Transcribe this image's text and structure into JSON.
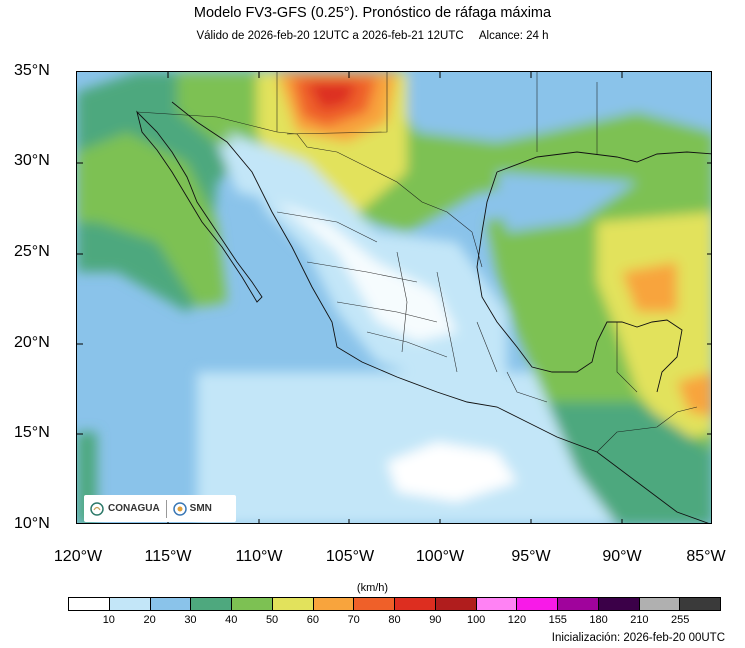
{
  "header": {
    "title": "Modelo FV3-GFS (0.25°). Pronóstico de ráfaga máxima",
    "valid": "Válido de 2026-feb-20 12UTC a 2026-feb-21 12UTC",
    "lead": "Alcance: 24 h"
  },
  "map": {
    "lat_labels": [
      "35°N",
      "30°N",
      "25°N",
      "20°N",
      "15°N",
      "10°N"
    ],
    "lon_labels": [
      "120°W",
      "115°W",
      "110°W",
      "105°W",
      "100°W",
      "95°W",
      "90°W",
      "85°W"
    ],
    "extent": {
      "lon_min": -120,
      "lon_max": -85,
      "lat_min": 10,
      "lat_max": 35
    }
  },
  "logos": {
    "left": "CONAGUA",
    "right": "SMN"
  },
  "colorbar": {
    "units": "(km/h)",
    "colors": [
      "#ffffff",
      "#c3e6f8",
      "#8ac3ea",
      "#4ea87e",
      "#7dc153",
      "#e2e25c",
      "#f8a43d",
      "#ef6029",
      "#dd2e20",
      "#b01d1d",
      "#ff82f4",
      "#f81ae8",
      "#a0039c",
      "#3b0048",
      "#b0b0b0",
      "#3a3a3a"
    ],
    "ticks": [
      "10",
      "20",
      "30",
      "40",
      "50",
      "60",
      "70",
      "80",
      "90",
      "100",
      "120",
      "155",
      "180",
      "210",
      "255"
    ]
  },
  "footer": {
    "init": "Inicialización: 2026-feb-20 00UTC"
  }
}
